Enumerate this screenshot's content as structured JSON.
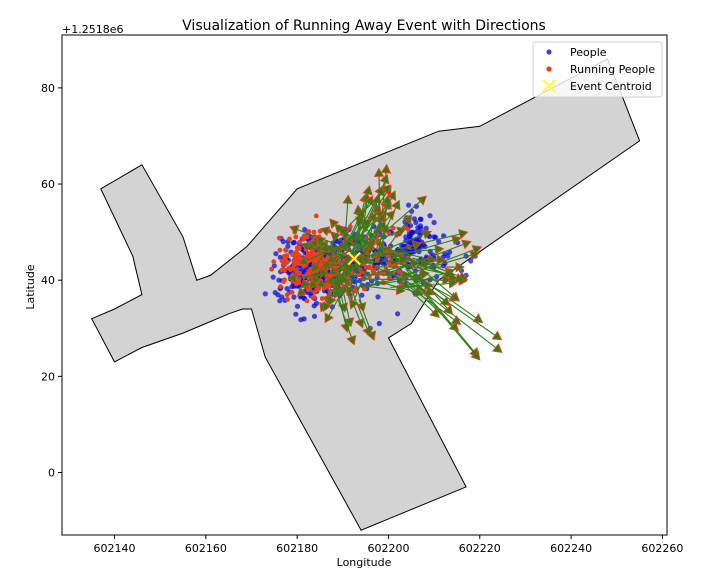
{
  "chart_data": {
    "type": "scatter",
    "title": "Visualization of Running Away Event with Directions",
    "xlabel": "Longitude",
    "ylabel": "Latitude",
    "y_offset_label": "+1.2518e6",
    "xlim": [
      602128.5,
      602261
    ],
    "ylim": [
      1251787,
      1251891
    ],
    "xticks": [
      602140,
      602160,
      602180,
      602200,
      602220,
      602240,
      602260
    ],
    "yticks": [
      0,
      20,
      40,
      60,
      80
    ],
    "legend_position": "top-right",
    "legend": [
      "People",
      "Running People",
      "Event Centroid"
    ],
    "colors": {
      "people": "#0000dd",
      "running": "#e8401c",
      "arrow": "#2e7d16",
      "centroid": "#ffff33",
      "polygon_fill": "#d3d3d3",
      "polygon_edge": "#000000"
    },
    "region_polygon": [
      [
        602135,
        1251832
      ],
      [
        602140,
        1251823
      ],
      [
        602146,
        1251826
      ],
      [
        602155,
        1251829
      ],
      [
        602160,
        1251831
      ],
      [
        602165,
        1251833
      ],
      [
        602168,
        1251834
      ],
      [
        602170,
        1251834
      ],
      [
        602173,
        1251824
      ],
      [
        602194,
        1251788
      ],
      [
        602217,
        1251797
      ],
      [
        602200,
        1251828
      ],
      [
        602205,
        1251831
      ],
      [
        602211,
        1251840
      ],
      [
        602255,
        1251869
      ],
      [
        602248,
        1251886
      ],
      [
        602220,
        1251872
      ],
      [
        602211,
        1251871
      ],
      [
        602180,
        1251859
      ],
      [
        602169,
        1251847
      ],
      [
        602161,
        1251841
      ],
      [
        602158,
        1251840
      ],
      [
        602155,
        1251849
      ],
      [
        602146,
        1251864
      ],
      [
        602137,
        1251859
      ],
      [
        602144,
        1251845
      ],
      [
        602146,
        1251837
      ],
      [
        602140,
        1251834
      ]
    ],
    "event_centroid": {
      "x": 602192.5,
      "y": 1251844.5
    },
    "people_clusters": [
      {
        "cx": 602184,
        "cy": 1251842,
        "sx": 4.4,
        "sy": 3.6,
        "n": 300
      },
      {
        "cx": 602196,
        "cy": 1251845,
        "sx": 3.6,
        "sy": 3.0,
        "n": 130
      },
      {
        "cx": 602206,
        "cy": 1251845,
        "sx": 3.6,
        "sy": 3.0,
        "n": 90
      },
      {
        "cx": 602205,
        "cy": 1251850,
        "sx": 2.0,
        "sy": 2.4,
        "n": 30
      }
    ],
    "people_points": [
      [
        602208,
        1251847
      ],
      [
        602210,
        1251849
      ],
      [
        602211,
        1251848
      ],
      [
        602213,
        1251845
      ],
      [
        602216,
        1251842
      ],
      [
        602217,
        1251845
      ],
      [
        602218,
        1251844
      ],
      [
        602219,
        1251845
      ],
      [
        602217,
        1251841
      ],
      [
        602212,
        1251843
      ],
      [
        602204,
        1251853
      ],
      [
        602206,
        1251852
      ],
      [
        602196,
        1251830
      ],
      [
        602198,
        1251831
      ],
      [
        602202,
        1251833
      ],
      [
        602210,
        1251852
      ],
      [
        602175,
        1251843
      ],
      [
        602176,
        1251840
      ],
      [
        602178,
        1251848
      ]
    ],
    "running_clusters": [
      {
        "cx": 602184,
        "cy": 1251843,
        "sx": 4.2,
        "sy": 3.4,
        "n": 220
      },
      {
        "cx": 602197,
        "cy": 1251845,
        "sx": 4.4,
        "sy": 3.2,
        "n": 110
      }
    ],
    "arrow_fans": [
      {
        "n": 48,
        "from": [
          [
            602188,
            1251840
          ],
          [
            602197,
            1251849
          ]
        ],
        "ang": [
          130,
          250
        ],
        "len": [
          5,
          12
        ]
      },
      {
        "n": 30,
        "from": [
          [
            602190,
            1251844
          ],
          [
            602200,
            1251852
          ]
        ],
        "ang": [
          35,
          95
        ],
        "len": [
          7,
          14
        ]
      },
      {
        "n": 26,
        "from": [
          [
            602193,
            1251838
          ],
          [
            602203,
            1251848
          ]
        ],
        "ang": [
          -15,
          22
        ],
        "len": [
          9,
          20
        ]
      },
      {
        "n": 16,
        "from": [
          [
            602196,
            1251838
          ],
          [
            602206,
            1251846
          ]
        ],
        "ang": [
          -50,
          -20
        ],
        "len": [
          11,
          25
        ]
      },
      {
        "n": 8,
        "from": [
          [
            602188,
            1251836
          ],
          [
            602194,
            1251842
          ]
        ],
        "ang": [
          -85,
          -60
        ],
        "len": [
          6,
          12
        ]
      }
    ]
  }
}
